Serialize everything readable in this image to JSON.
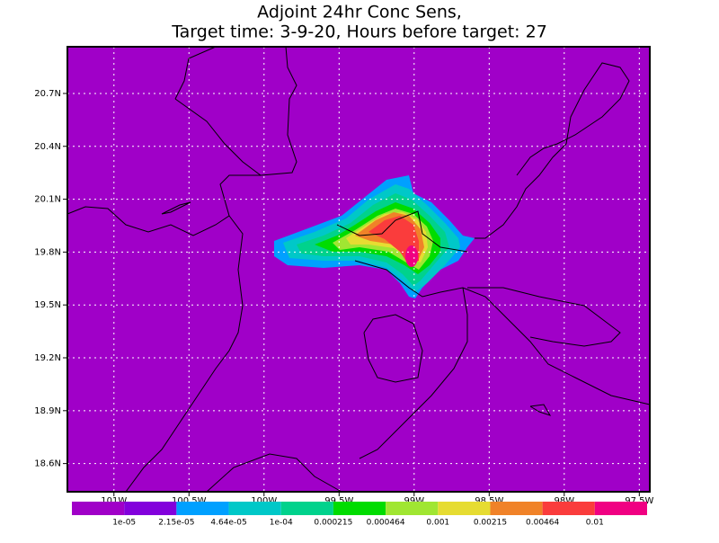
{
  "title": [
    "Adjoint 24hr Conc Sens,",
    "Target time: 3-9-20, Hours before target: 27"
  ],
  "map": {
    "xlim": [
      -101.31,
      -97.43
    ],
    "ylim": [
      18.44,
      20.965
    ],
    "xticks": [
      {
        "value": -101,
        "label": "101W"
      },
      {
        "value": -100.5,
        "label": "100.5W"
      },
      {
        "value": -100,
        "label": "100W"
      },
      {
        "value": -99.5,
        "label": "99.5W"
      },
      {
        "value": -99,
        "label": "99W"
      },
      {
        "value": -98.5,
        "label": "98.5W"
      },
      {
        "value": -98,
        "label": "98W"
      },
      {
        "value": -97.5,
        "label": "97.5W"
      }
    ],
    "yticks": [
      {
        "value": 20.7,
        "label": "20.7N"
      },
      {
        "value": 20.4,
        "label": "20.4N"
      },
      {
        "value": 20.1,
        "label": "20.1N"
      },
      {
        "value": 19.8,
        "label": "19.8N"
      },
      {
        "value": 19.5,
        "label": "19.5N"
      },
      {
        "value": 19.2,
        "label": "19.2N"
      },
      {
        "value": 18.9,
        "label": "18.9N"
      },
      {
        "value": 18.6,
        "label": "18.6N"
      }
    ],
    "grid": true,
    "background": "#a000c8"
  },
  "colorbar": {
    "levels": [
      {
        "value": 1e-05,
        "label": "1e-05"
      },
      {
        "value": 2.15e-05,
        "label": "2.15e-05"
      },
      {
        "value": 4.64e-05,
        "label": "4.64e-05"
      },
      {
        "value": 0.0001,
        "label": "1e-04"
      },
      0.000215,
      0.000464,
      0.001,
      0.00215,
      0.00464,
      0.01
    ],
    "colors": [
      "#a000c8",
      "#8200dc",
      "#00a0ff",
      "#00c8c8",
      "#00d28c",
      "#00dc00",
      "#a0e632",
      "#e6dc32",
      "#f08228",
      "#fa3c3c",
      "#f00082"
    ]
  }
}
